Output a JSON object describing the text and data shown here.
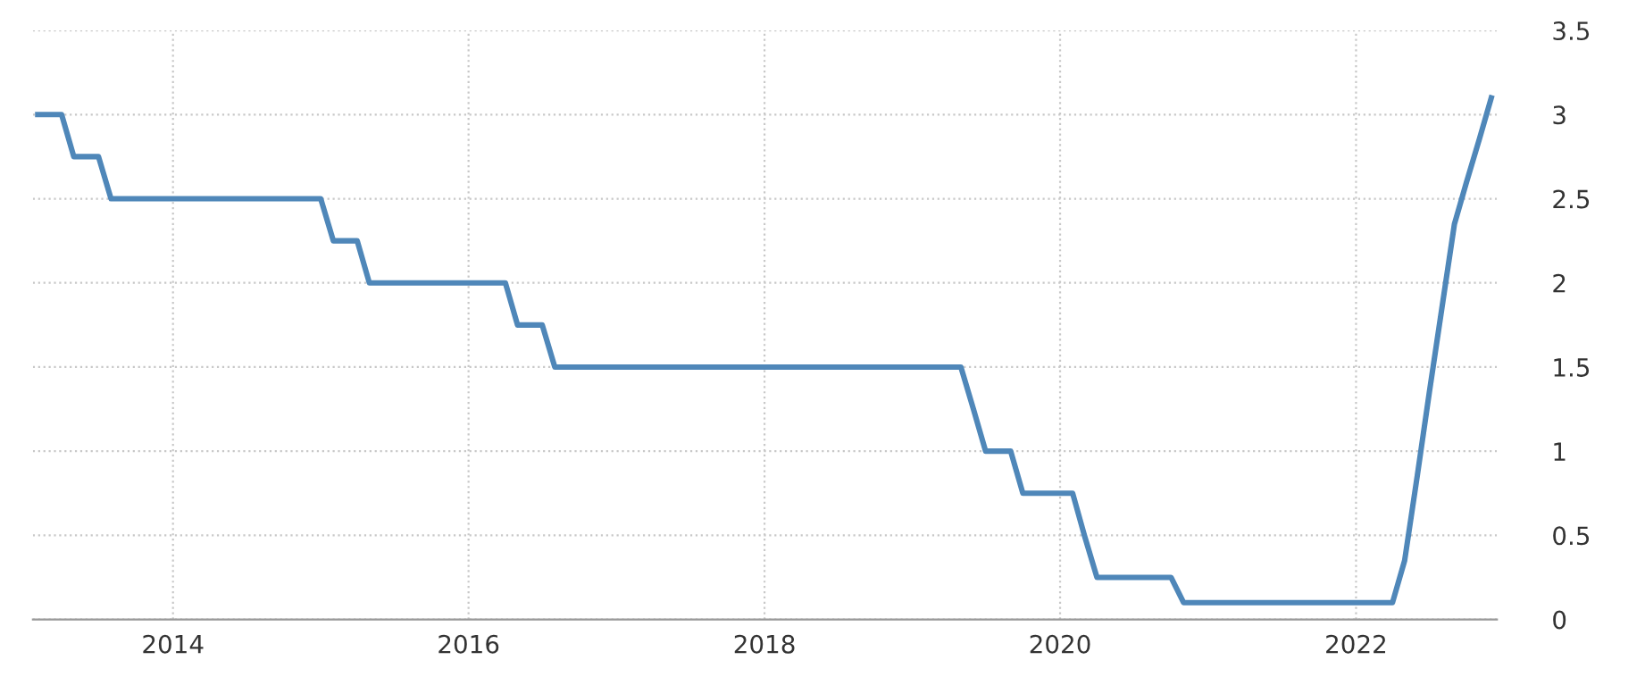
{
  "chart_data": {
    "type": "line",
    "x": [
      "2013-02-01",
      "2013-04-01",
      "2013-05-01",
      "2013-07-01",
      "2013-08-01",
      "2015-01-01",
      "2015-02-01",
      "2015-04-01",
      "2015-05-01",
      "2016-04-01",
      "2016-05-01",
      "2016-07-01",
      "2016-08-01",
      "2019-05-01",
      "2019-06-01",
      "2019-07-01",
      "2019-09-01",
      "2019-10-01",
      "2020-02-01",
      "2020-03-01",
      "2020-04-01",
      "2020-10-01",
      "2020-11-01",
      "2022-04-01",
      "2022-05-01",
      "2022-06-01",
      "2022-07-01",
      "2022-08-01",
      "2022-09-01",
      "2022-10-01",
      "2022-11-01",
      "2022-12-01"
    ],
    "series": [
      {
        "color": "#4f87b9",
        "values": [
          3.0,
          3.0,
          2.75,
          2.75,
          2.5,
          2.5,
          2.25,
          2.25,
          2.0,
          2.0,
          1.75,
          1.75,
          1.5,
          1.5,
          1.25,
          1.0,
          1.0,
          0.75,
          0.75,
          0.5,
          0.25,
          0.25,
          0.1,
          0.1,
          0.35,
          0.85,
          1.35,
          1.85,
          2.35,
          2.6,
          2.85,
          3.1
        ]
      }
    ],
    "xlim": [
      "2013-01-20",
      "2022-12-15"
    ],
    "xticks": [
      {
        "value": "2014-01-01",
        "label": "2014"
      },
      {
        "value": "2016-01-01",
        "label": "2016"
      },
      {
        "value": "2018-01-01",
        "label": "2018"
      },
      {
        "value": "2020-01-01",
        "label": "2020"
      },
      {
        "value": "2022-01-01",
        "label": "2022"
      }
    ],
    "ylim": [
      0,
      3.5
    ],
    "yticks": [
      0,
      0.5,
      1,
      1.5,
      2,
      2.5,
      3,
      3.5
    ],
    "grid": true,
    "legend": false,
    "marker": "none",
    "line_style": "solid"
  }
}
